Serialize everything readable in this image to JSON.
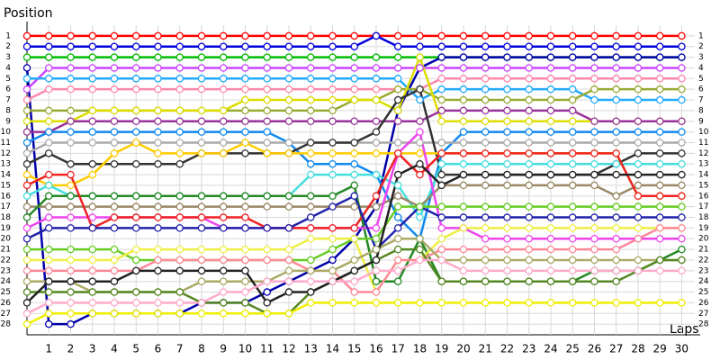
{
  "chart_data": {
    "type": "line",
    "y_label": "Position",
    "x_label": "Laps",
    "x": [
      0,
      1,
      2,
      3,
      4,
      5,
      6,
      7,
      8,
      9,
      10,
      11,
      12,
      13,
      14,
      15,
      16,
      17,
      18,
      19,
      20,
      21,
      22,
      23,
      24,
      25,
      26,
      27,
      28,
      29,
      30
    ],
    "xlim": [
      0,
      30.6
    ],
    "xticks": [
      1,
      2,
      3,
      4,
      5,
      6,
      7,
      8,
      9,
      10,
      11,
      12,
      13,
      14,
      15,
      16,
      17,
      18,
      19,
      20,
      21,
      22,
      23,
      24,
      25,
      26,
      27,
      28,
      29,
      30
    ],
    "ylim": [
      0,
      29
    ],
    "y_inverted": true,
    "yticks": [
      1,
      2,
      3,
      4,
      5,
      6,
      7,
      8,
      9,
      10,
      11,
      12,
      13,
      14,
      15,
      16,
      17,
      18,
      19,
      20,
      21,
      22,
      23,
      24,
      25,
      26,
      27,
      28
    ],
    "grid": true,
    "series": [
      {
        "color": "#ff0000",
        "values": [
          1,
          1,
          1,
          1,
          1,
          1,
          1,
          1,
          1,
          1,
          1,
          1,
          1,
          1,
          1,
          1,
          1,
          1,
          1,
          1,
          1,
          1,
          1,
          1,
          1,
          1,
          1,
          1,
          1,
          1,
          1
        ]
      },
      {
        "color": "#0000dd",
        "values": [
          2,
          2,
          2,
          2,
          2,
          2,
          2,
          2,
          2,
          2,
          2,
          2,
          2,
          2,
          2,
          2,
          1,
          2,
          2,
          2,
          2,
          2,
          2,
          2,
          2,
          2,
          2,
          2,
          2,
          2,
          2
        ]
      },
      {
        "color": "#00bb00",
        "values": [
          3,
          3,
          3,
          3,
          3,
          3,
          3,
          3,
          3,
          3,
          3,
          3,
          3,
          3,
          3,
          3,
          3,
          3,
          3,
          3,
          3,
          3,
          3,
          3,
          3,
          3,
          3,
          3,
          3,
          3,
          3
        ]
      },
      {
        "color": "#0000aa",
        "values": [
          4,
          28,
          28,
          27,
          27,
          27,
          27,
          27,
          26,
          26,
          26,
          25,
          24,
          23,
          22,
          20,
          17,
          8,
          4,
          3,
          3,
          3,
          3,
          3,
          3,
          3,
          3,
          3,
          3,
          3,
          3
        ]
      },
      {
        "color": "#cc44ff",
        "values": [
          6,
          4,
          4,
          4,
          4,
          4,
          4,
          4,
          4,
          4,
          4,
          4,
          4,
          4,
          4,
          4,
          4,
          4,
          4,
          4,
          4,
          4,
          4,
          4,
          4,
          4,
          4,
          4,
          4,
          4,
          4
        ]
      },
      {
        "color": "#22aaff",
        "values": [
          5,
          5,
          5,
          5,
          5,
          5,
          5,
          5,
          5,
          5,
          5,
          5,
          5,
          5,
          5,
          5,
          5,
          5,
          7,
          6,
          6,
          6,
          6,
          6,
          6,
          6,
          7,
          7,
          7,
          7,
          7
        ]
      },
      {
        "color": "#ff88aa",
        "values": [
          7,
          6,
          6,
          6,
          6,
          6,
          6,
          6,
          6,
          6,
          6,
          6,
          6,
          6,
          6,
          6,
          6,
          6,
          6,
          5,
          5,
          5,
          5,
          5,
          5,
          5,
          5,
          5,
          5,
          5,
          5
        ]
      },
      {
        "color": "#99aa33",
        "values": [
          8,
          8,
          8,
          8,
          8,
          8,
          8,
          8,
          8,
          8,
          8,
          8,
          8,
          8,
          8,
          7,
          7,
          6,
          6,
          7,
          7,
          7,
          7,
          7,
          7,
          7,
          6,
          6,
          6,
          6,
          6
        ]
      },
      {
        "color": "#dddd00",
        "values": [
          9,
          9,
          9,
          8,
          8,
          8,
          8,
          8,
          8,
          8,
          7,
          7,
          7,
          7,
          7,
          7,
          7,
          8,
          3,
          9,
          9,
          9,
          9,
          9,
          9,
          9,
          9,
          9,
          9,
          9,
          9
        ]
      },
      {
        "color": "#993399",
        "values": [
          10,
          10,
          9,
          9,
          9,
          9,
          9,
          9,
          9,
          9,
          9,
          9,
          9,
          9,
          9,
          9,
          9,
          9,
          9,
          8,
          8,
          8,
          8,
          8,
          8,
          8,
          9,
          9,
          9,
          9,
          9
        ]
      },
      {
        "color": "#1188ee",
        "values": [
          11,
          10,
          10,
          10,
          10,
          10,
          10,
          10,
          10,
          10,
          10,
          10,
          11,
          13,
          13,
          13,
          14,
          18,
          20,
          12,
          10,
          10,
          10,
          10,
          10,
          10,
          10,
          10,
          10,
          10,
          10
        ]
      },
      {
        "color": "#aaaaaa",
        "values": [
          12,
          11,
          11,
          11,
          11,
          11,
          11,
          11,
          11,
          11,
          11,
          11,
          11,
          11,
          11,
          11,
          11,
          11,
          11,
          11,
          11,
          11,
          11,
          11,
          11,
          11,
          11,
          11,
          11,
          11,
          11
        ]
      },
      {
        "color": "#333333",
        "values": [
          13,
          12,
          13,
          13,
          13,
          13,
          13,
          13,
          12,
          12,
          12,
          12,
          12,
          11,
          11,
          11,
          10,
          7,
          6,
          14,
          14,
          14,
          14,
          14,
          14,
          14,
          14,
          13,
          12,
          12,
          12
        ]
      },
      {
        "color": "#ffcc00",
        "values": [
          14,
          15,
          15,
          14,
          12,
          11,
          12,
          12,
          12,
          12,
          11,
          12,
          12,
          12,
          12,
          12,
          12,
          12,
          12,
          12,
          12,
          12,
          12,
          12,
          12,
          12,
          12,
          12,
          16,
          16,
          16
        ]
      },
      {
        "color": "#44dddd",
        "values": [
          16,
          15,
          16,
          16,
          16,
          16,
          16,
          16,
          16,
          16,
          16,
          16,
          16,
          14,
          14,
          14,
          14,
          15,
          18,
          13,
          13,
          13,
          13,
          13,
          13,
          13,
          13,
          13,
          13,
          13,
          13
        ]
      },
      {
        "color": "#998866",
        "values": [
          17,
          17,
          17,
          17,
          17,
          17,
          17,
          17,
          17,
          17,
          17,
          17,
          17,
          17,
          17,
          17,
          17,
          16,
          17,
          15,
          15,
          15,
          15,
          15,
          15,
          15,
          15,
          16,
          15,
          15,
          15
        ]
      },
      {
        "color": "#228822",
        "values": [
          18,
          16,
          16,
          16,
          16,
          16,
          16,
          16,
          16,
          16,
          16,
          16,
          16,
          16,
          16,
          15,
          24,
          24,
          20,
          24,
          24,
          24,
          24,
          24,
          24,
          24,
          23,
          23,
          23,
          22,
          21
        ]
      },
      {
        "color": "#ee44ee",
        "values": [
          19,
          18,
          18,
          18,
          18,
          18,
          18,
          18,
          18,
          19,
          19,
          19,
          19,
          19,
          19,
          19,
          19,
          12,
          10,
          19,
          19,
          20,
          20,
          20,
          20,
          20,
          20,
          20,
          20,
          20,
          20
        ]
      },
      {
        "color": "#ee2222",
        "values": [
          15,
          14,
          14,
          19,
          18,
          18,
          18,
          18,
          18,
          18,
          18,
          19,
          19,
          19,
          19,
          19,
          16,
          12,
          14,
          12,
          12,
          12,
          12,
          12,
          12,
          12,
          12,
          12,
          16,
          16,
          16
        ]
      },
      {
        "color": "#2222aa",
        "values": [
          20,
          19,
          19,
          19,
          19,
          19,
          19,
          19,
          19,
          19,
          19,
          19,
          19,
          18,
          17,
          16,
          21,
          19,
          17,
          18,
          18,
          18,
          18,
          18,
          18,
          18,
          18,
          18,
          18,
          18,
          18
        ]
      },
      {
        "color": "#66cc22",
        "values": [
          21,
          21,
          21,
          21,
          21,
          22,
          22,
          22,
          22,
          22,
          22,
          22,
          22,
          22,
          21,
          20,
          20,
          17,
          17,
          17,
          17,
          17,
          17,
          17,
          17,
          17,
          17,
          17,
          17,
          17,
          17
        ]
      },
      {
        "color": "#eeee44",
        "values": [
          22,
          22,
          22,
          22,
          22,
          21,
          21,
          21,
          21,
          21,
          21,
          21,
          21,
          20,
          20,
          20,
          25,
          22,
          22,
          20,
          19,
          19,
          19,
          19,
          19,
          19,
          19,
          19,
          19,
          19,
          19
        ]
      },
      {
        "color": "#ff8899",
        "values": [
          23,
          23,
          23,
          23,
          23,
          23,
          22,
          22,
          22,
          22,
          22,
          22,
          22,
          23,
          23,
          25,
          25,
          22,
          22,
          21,
          21,
          21,
          21,
          21,
          21,
          21,
          21,
          21,
          20,
          19,
          19
        ]
      },
      {
        "color": "#aaaa66",
        "values": [
          24,
          24,
          24,
          25,
          25,
          25,
          25,
          25,
          24,
          24,
          24,
          24,
          23,
          23,
          23,
          22,
          21,
          20,
          20,
          22,
          22,
          22,
          22,
          22,
          22,
          22,
          22,
          22,
          22,
          22,
          22
        ]
      },
      {
        "color": "#558822",
        "values": [
          25,
          25,
          25,
          25,
          25,
          25,
          25,
          25,
          26,
          26,
          26,
          27,
          27,
          25,
          24,
          23,
          22,
          21,
          21,
          24,
          24,
          24,
          24,
          24,
          24,
          24,
          24,
          24,
          23,
          22,
          22
        ]
      },
      {
        "color": "#222222",
        "values": [
          26,
          24,
          24,
          24,
          24,
          23,
          23,
          23,
          23,
          23,
          23,
          26,
          25,
          25,
          24,
          23,
          22,
          14,
          13,
          15,
          14,
          14,
          14,
          14,
          14,
          14,
          14,
          14,
          14,
          14,
          14
        ]
      },
      {
        "color": "#ffaacc",
        "values": [
          27,
          26,
          26,
          26,
          26,
          26,
          26,
          26,
          26,
          25,
          25,
          24,
          24,
          24,
          24,
          24,
          23,
          23,
          22,
          22,
          23,
          23,
          23,
          23,
          23,
          23,
          23,
          23,
          23,
          23,
          23
        ]
      },
      {
        "color": "#eeee00",
        "values": [
          28,
          27,
          27,
          27,
          27,
          27,
          27,
          27,
          27,
          27,
          27,
          27,
          27,
          26,
          26,
          26,
          26,
          26,
          26,
          26,
          26,
          26,
          26,
          26,
          26,
          26,
          26,
          26,
          26,
          26,
          26
        ]
      }
    ]
  }
}
